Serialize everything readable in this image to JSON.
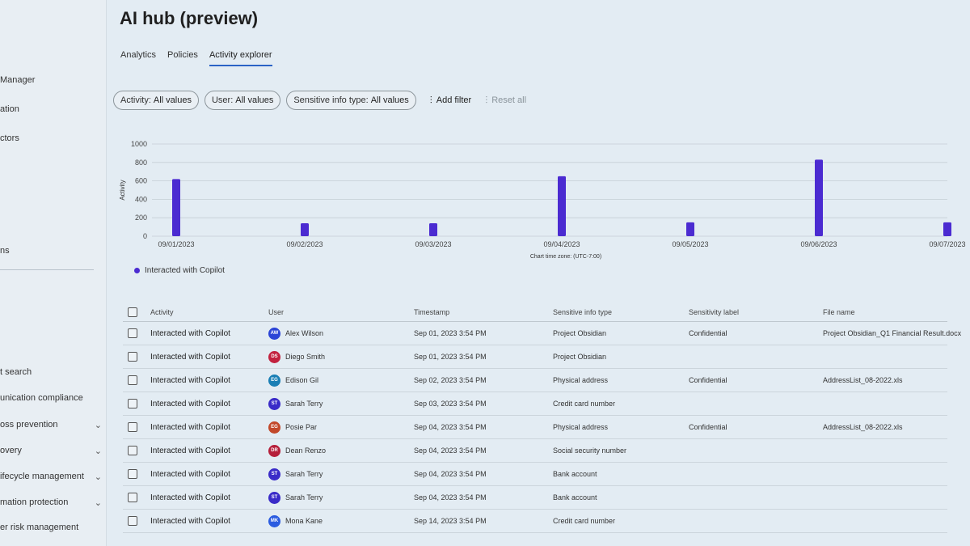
{
  "sidebar": {
    "items": [
      {
        "label": "Manager",
        "top": 88,
        "chevron": false
      },
      {
        "label": "ation",
        "top": 124,
        "chevron": false
      },
      {
        "label": "ctors",
        "top": 160,
        "chevron": false
      },
      {
        "label": "ns",
        "top": 299,
        "chevron": false
      },
      {
        "label": "t search",
        "top": 449,
        "chevron": false
      },
      {
        "label": "unication compliance",
        "top": 481,
        "chevron": false
      },
      {
        "label": "oss prevention",
        "top": 514,
        "chevron": true
      },
      {
        "label": "overy",
        "top": 546,
        "chevron": true
      },
      {
        "label": "ifecycle management",
        "top": 578,
        "chevron": true
      },
      {
        "label": "mation protection",
        "top": 610,
        "chevron": true
      },
      {
        "label": "er risk management",
        "top": 641,
        "chevron": false
      }
    ]
  },
  "page": {
    "title": "AI hub (preview)"
  },
  "tabs": [
    {
      "label": "Analytics",
      "active": false
    },
    {
      "label": "Policies",
      "active": false
    },
    {
      "label": "Activity explorer",
      "active": true
    }
  ],
  "filters": [
    {
      "name": "Activity:",
      "value": "All values"
    },
    {
      "name": "User:",
      "value": "All values"
    },
    {
      "name": "Sensitive info type:",
      "value": "All values"
    }
  ],
  "actions": {
    "add_filter": "Add filter",
    "reset_all": "Reset all"
  },
  "chart_data": {
    "type": "bar",
    "title": "",
    "xlabel": "Chart time zone: (UTC-7:00)",
    "ylabel": "Activity",
    "ylim": [
      0,
      1000
    ],
    "yticks": [
      0,
      200,
      400,
      600,
      800,
      1000
    ],
    "categories": [
      "09/01/2023",
      "09/02/2023",
      "09/03/2023",
      "09/04/2023",
      "09/05/2023",
      "09/06/2023",
      "09/07/2023"
    ],
    "series": [
      {
        "name": "Interacted with Copilot",
        "color": "#4b2bd1",
        "values": [
          620,
          140,
          140,
          650,
          150,
          830,
          150
        ]
      }
    ],
    "grid": true,
    "legend_position": "bottom-left"
  },
  "table": {
    "columns": [
      "Activity",
      "User",
      "Timestamp",
      "Sensitive info type",
      "Sensitivity label",
      "File name"
    ],
    "rows": [
      {
        "activity": "Interacted with Copilot",
        "initials": "AW",
        "user": "Alex Wilson",
        "avatar_color": "#2b44d6",
        "timestamp": "Sep 01, 2023 3:54 PM",
        "sit": "Project Obsidian",
        "label": "Confidential",
        "file": "Project Obsidian_Q1 Financial Result.docx"
      },
      {
        "activity": "Interacted with Copilot",
        "initials": "DS",
        "user": "Diego Smith",
        "avatar_color": "#c2223f",
        "timestamp": "Sep 01, 2023 3:54 PM",
        "sit": "Project Obsidian",
        "label": "",
        "file": ""
      },
      {
        "activity": "Interacted with Copilot",
        "initials": "EG",
        "user": "Edison Gil",
        "avatar_color": "#1a7fb5",
        "timestamp": "Sep 02, 2023 3:54 PM",
        "sit": "Physical address",
        "label": "Confidential",
        "file": "AddressList_08-2022.xls"
      },
      {
        "activity": "Interacted with Copilot",
        "initials": "ST",
        "user": "Sarah Terry",
        "avatar_color": "#3a2bc8",
        "timestamp": "Sep 03, 2023 3:54 PM",
        "sit": "Credit card number",
        "label": "",
        "file": ""
      },
      {
        "activity": "Interacted with Copilot",
        "initials": "EG",
        "user": "Posie Par",
        "avatar_color": "#c2482a",
        "timestamp": "Sep 04, 2023 3:54 PM",
        "sit": "Physical address",
        "label": "Confidential",
        "file": "AddressList_08-2022.xls"
      },
      {
        "activity": "Interacted with Copilot",
        "initials": "DR",
        "user": "Dean Renzo",
        "avatar_color": "#b51e3a",
        "timestamp": "Sep 04, 2023 3:54 PM",
        "sit": "Social security number",
        "label": "",
        "file": ""
      },
      {
        "activity": "Interacted with Copilot",
        "initials": "ST",
        "user": "Sarah Terry",
        "avatar_color": "#3a2bc8",
        "timestamp": "Sep 04, 2023 3:54 PM",
        "sit": "Bank account",
        "label": "",
        "file": ""
      },
      {
        "activity": "Interacted with Copilot",
        "initials": "ST",
        "user": "Sarah Terry",
        "avatar_color": "#3a2bc8",
        "timestamp": "Sep 04, 2023 3:54 PM",
        "sit": "Bank account",
        "label": "",
        "file": ""
      },
      {
        "activity": "Interacted with Copilot",
        "initials": "MK",
        "user": "Mona Kane",
        "avatar_color": "#2b5ce0",
        "timestamp": "Sep 14, 2023 3:54 PM",
        "sit": "Credit card number",
        "label": "",
        "file": ""
      }
    ]
  }
}
